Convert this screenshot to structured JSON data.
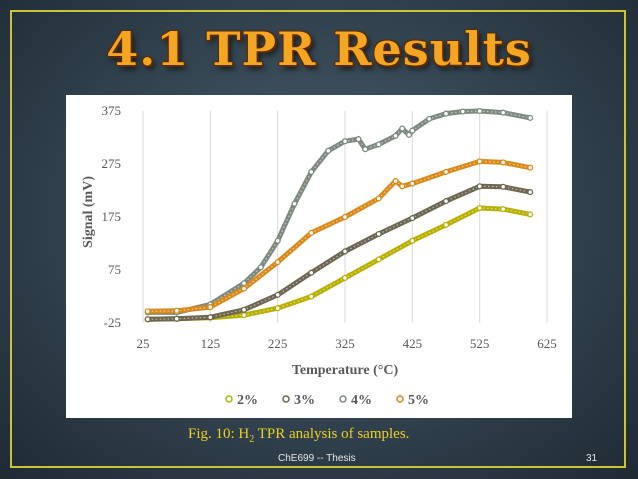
{
  "slide": {
    "title": "4.1 TPR Results",
    "caption_prefix": "Fig. 10: H",
    "caption_sub": "2",
    "caption_suffix": " TPR analysis of samples.",
    "footer": "ChE699 -- Thesis",
    "page_number": "31",
    "accent_color": "#f4a623",
    "border_color": "#c9c43a"
  },
  "chart_data": {
    "type": "scatter",
    "xlabel": "Temperature (°C)",
    "ylabel": "Signal (mV)",
    "xlim": [
      25,
      625
    ],
    "ylim": [
      -25,
      375
    ],
    "xticks": [
      25,
      125,
      225,
      325,
      425,
      525,
      625
    ],
    "yticks": [
      -25,
      75,
      175,
      275,
      375
    ],
    "grid": "vertical",
    "legend_position": "bottom",
    "series": [
      {
        "name": "2%",
        "color": "#b8b000",
        "x": [
          32,
          75,
          125,
          175,
          225,
          275,
          325,
          375,
          425,
          475,
          525,
          560,
          600
        ],
        "y": [
          -18,
          -17,
          -15,
          -10,
          3,
          25,
          60,
          95,
          130,
          160,
          192,
          190,
          180
        ]
      },
      {
        "name": "3%",
        "color": "#6e6650",
        "x": [
          32,
          75,
          125,
          175,
          225,
          275,
          325,
          375,
          425,
          475,
          525,
          560,
          600
        ],
        "y": [
          -18,
          -17,
          -14,
          0,
          28,
          70,
          110,
          143,
          173,
          205,
          233,
          232,
          222
        ]
      },
      {
        "name": "4%",
        "color": "#7d8a80",
        "x": [
          32,
          75,
          125,
          175,
          200,
          225,
          250,
          275,
          300,
          325,
          345,
          355,
          375,
          400,
          410,
          420,
          425,
          450,
          475,
          500,
          525,
          560,
          600
        ],
        "y": [
          -5,
          -5,
          10,
          50,
          80,
          130,
          200,
          260,
          300,
          318,
          322,
          303,
          312,
          328,
          342,
          330,
          338,
          360,
          370,
          374,
          375,
          372,
          362
        ]
      },
      {
        "name": "5%",
        "color": "#d98a1a",
        "x": [
          32,
          75,
          125,
          175,
          225,
          275,
          325,
          375,
          400,
          410,
          425,
          475,
          525,
          560,
          600
        ],
        "y": [
          -3,
          -2,
          5,
          40,
          90,
          145,
          175,
          210,
          243,
          233,
          238,
          260,
          280,
          278,
          268
        ]
      }
    ]
  }
}
